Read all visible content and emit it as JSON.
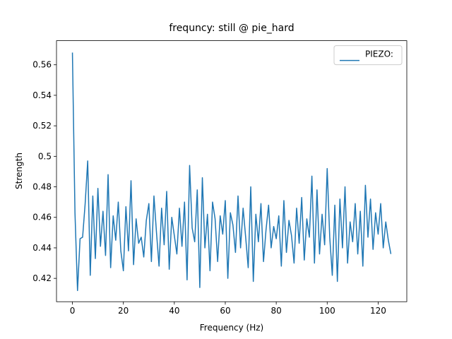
{
  "chart_data": {
    "type": "line",
    "title": "frequncy: still @ pie_hard",
    "x_label": "Frequency (Hz)",
    "y_label": "Strength",
    "x": [
      0,
      1,
      2,
      3,
      4,
      5,
      6,
      7,
      8,
      9,
      10,
      11,
      12,
      13,
      14,
      15,
      16,
      17,
      18,
      19,
      20,
      21,
      22,
      23,
      24,
      25,
      26,
      27,
      28,
      29,
      30,
      31,
      32,
      33,
      34,
      35,
      36,
      37,
      38,
      39,
      40,
      41,
      42,
      43,
      44,
      45,
      46,
      47,
      48,
      49,
      50,
      51,
      52,
      53,
      54,
      55,
      56,
      57,
      58,
      59,
      60,
      61,
      62,
      63,
      64,
      65,
      66,
      67,
      68,
      69,
      70,
      71,
      72,
      73,
      74,
      75,
      76,
      77,
      78,
      79,
      80,
      81,
      82,
      83,
      84,
      85,
      86,
      87,
      88,
      89,
      90,
      91,
      92,
      93,
      94,
      95,
      96,
      97,
      98,
      99,
      100,
      101,
      102,
      103,
      104,
      105,
      106,
      107,
      108,
      109,
      110,
      111,
      112,
      113,
      114,
      115,
      116,
      117,
      118,
      119,
      120,
      121,
      122,
      123,
      124,
      125
    ],
    "series": [
      {
        "name": "PIEZO:",
        "color": "#1f77b4",
        "values": [
          0.568,
          0.463,
          0.412,
          0.446,
          0.447,
          0.469,
          0.497,
          0.422,
          0.474,
          0.433,
          0.479,
          0.441,
          0.464,
          0.435,
          0.488,
          0.427,
          0.461,
          0.445,
          0.47,
          0.438,
          0.425,
          0.467,
          0.438,
          0.484,
          0.429,
          0.459,
          0.443,
          0.447,
          0.434,
          0.458,
          0.469,
          0.431,
          0.474,
          0.45,
          0.428,
          0.466,
          0.442,
          0.477,
          0.426,
          0.46,
          0.448,
          0.436,
          0.466,
          0.441,
          0.47,
          0.419,
          0.494,
          0.453,
          0.444,
          0.478,
          0.414,
          0.486,
          0.44,
          0.462,
          0.425,
          0.47,
          0.459,
          0.431,
          0.461,
          0.449,
          0.471,
          0.42,
          0.463,
          0.455,
          0.437,
          0.474,
          0.44,
          0.466,
          0.447,
          0.427,
          0.48,
          0.418,
          0.462,
          0.444,
          0.469,
          0.431,
          0.452,
          0.468,
          0.44,
          0.454,
          0.446,
          0.461,
          0.428,
          0.471,
          0.437,
          0.458,
          0.448,
          0.43,
          0.466,
          0.443,
          0.473,
          0.432,
          0.459,
          0.447,
          0.487,
          0.43,
          0.478,
          0.436,
          0.462,
          0.442,
          0.492,
          0.447,
          0.422,
          0.468,
          0.418,
          0.472,
          0.44,
          0.48,
          0.43,
          0.457,
          0.444,
          0.469,
          0.436,
          0.464,
          0.428,
          0.481,
          0.447,
          0.472,
          0.439,
          0.463,
          0.449,
          0.469,
          0.44,
          0.457,
          0.445,
          0.436
        ]
      }
    ],
    "xlim": [
      -6.25,
      131.25
    ],
    "xticks": [
      0,
      20,
      40,
      60,
      80,
      100,
      120
    ],
    "ylim": [
      0.4047,
      0.5758
    ],
    "yticks": [
      0.42,
      0.44,
      0.46,
      0.48,
      0.5,
      0.52,
      0.54,
      0.56
    ],
    "legend": "upper right",
    "grid": false
  }
}
